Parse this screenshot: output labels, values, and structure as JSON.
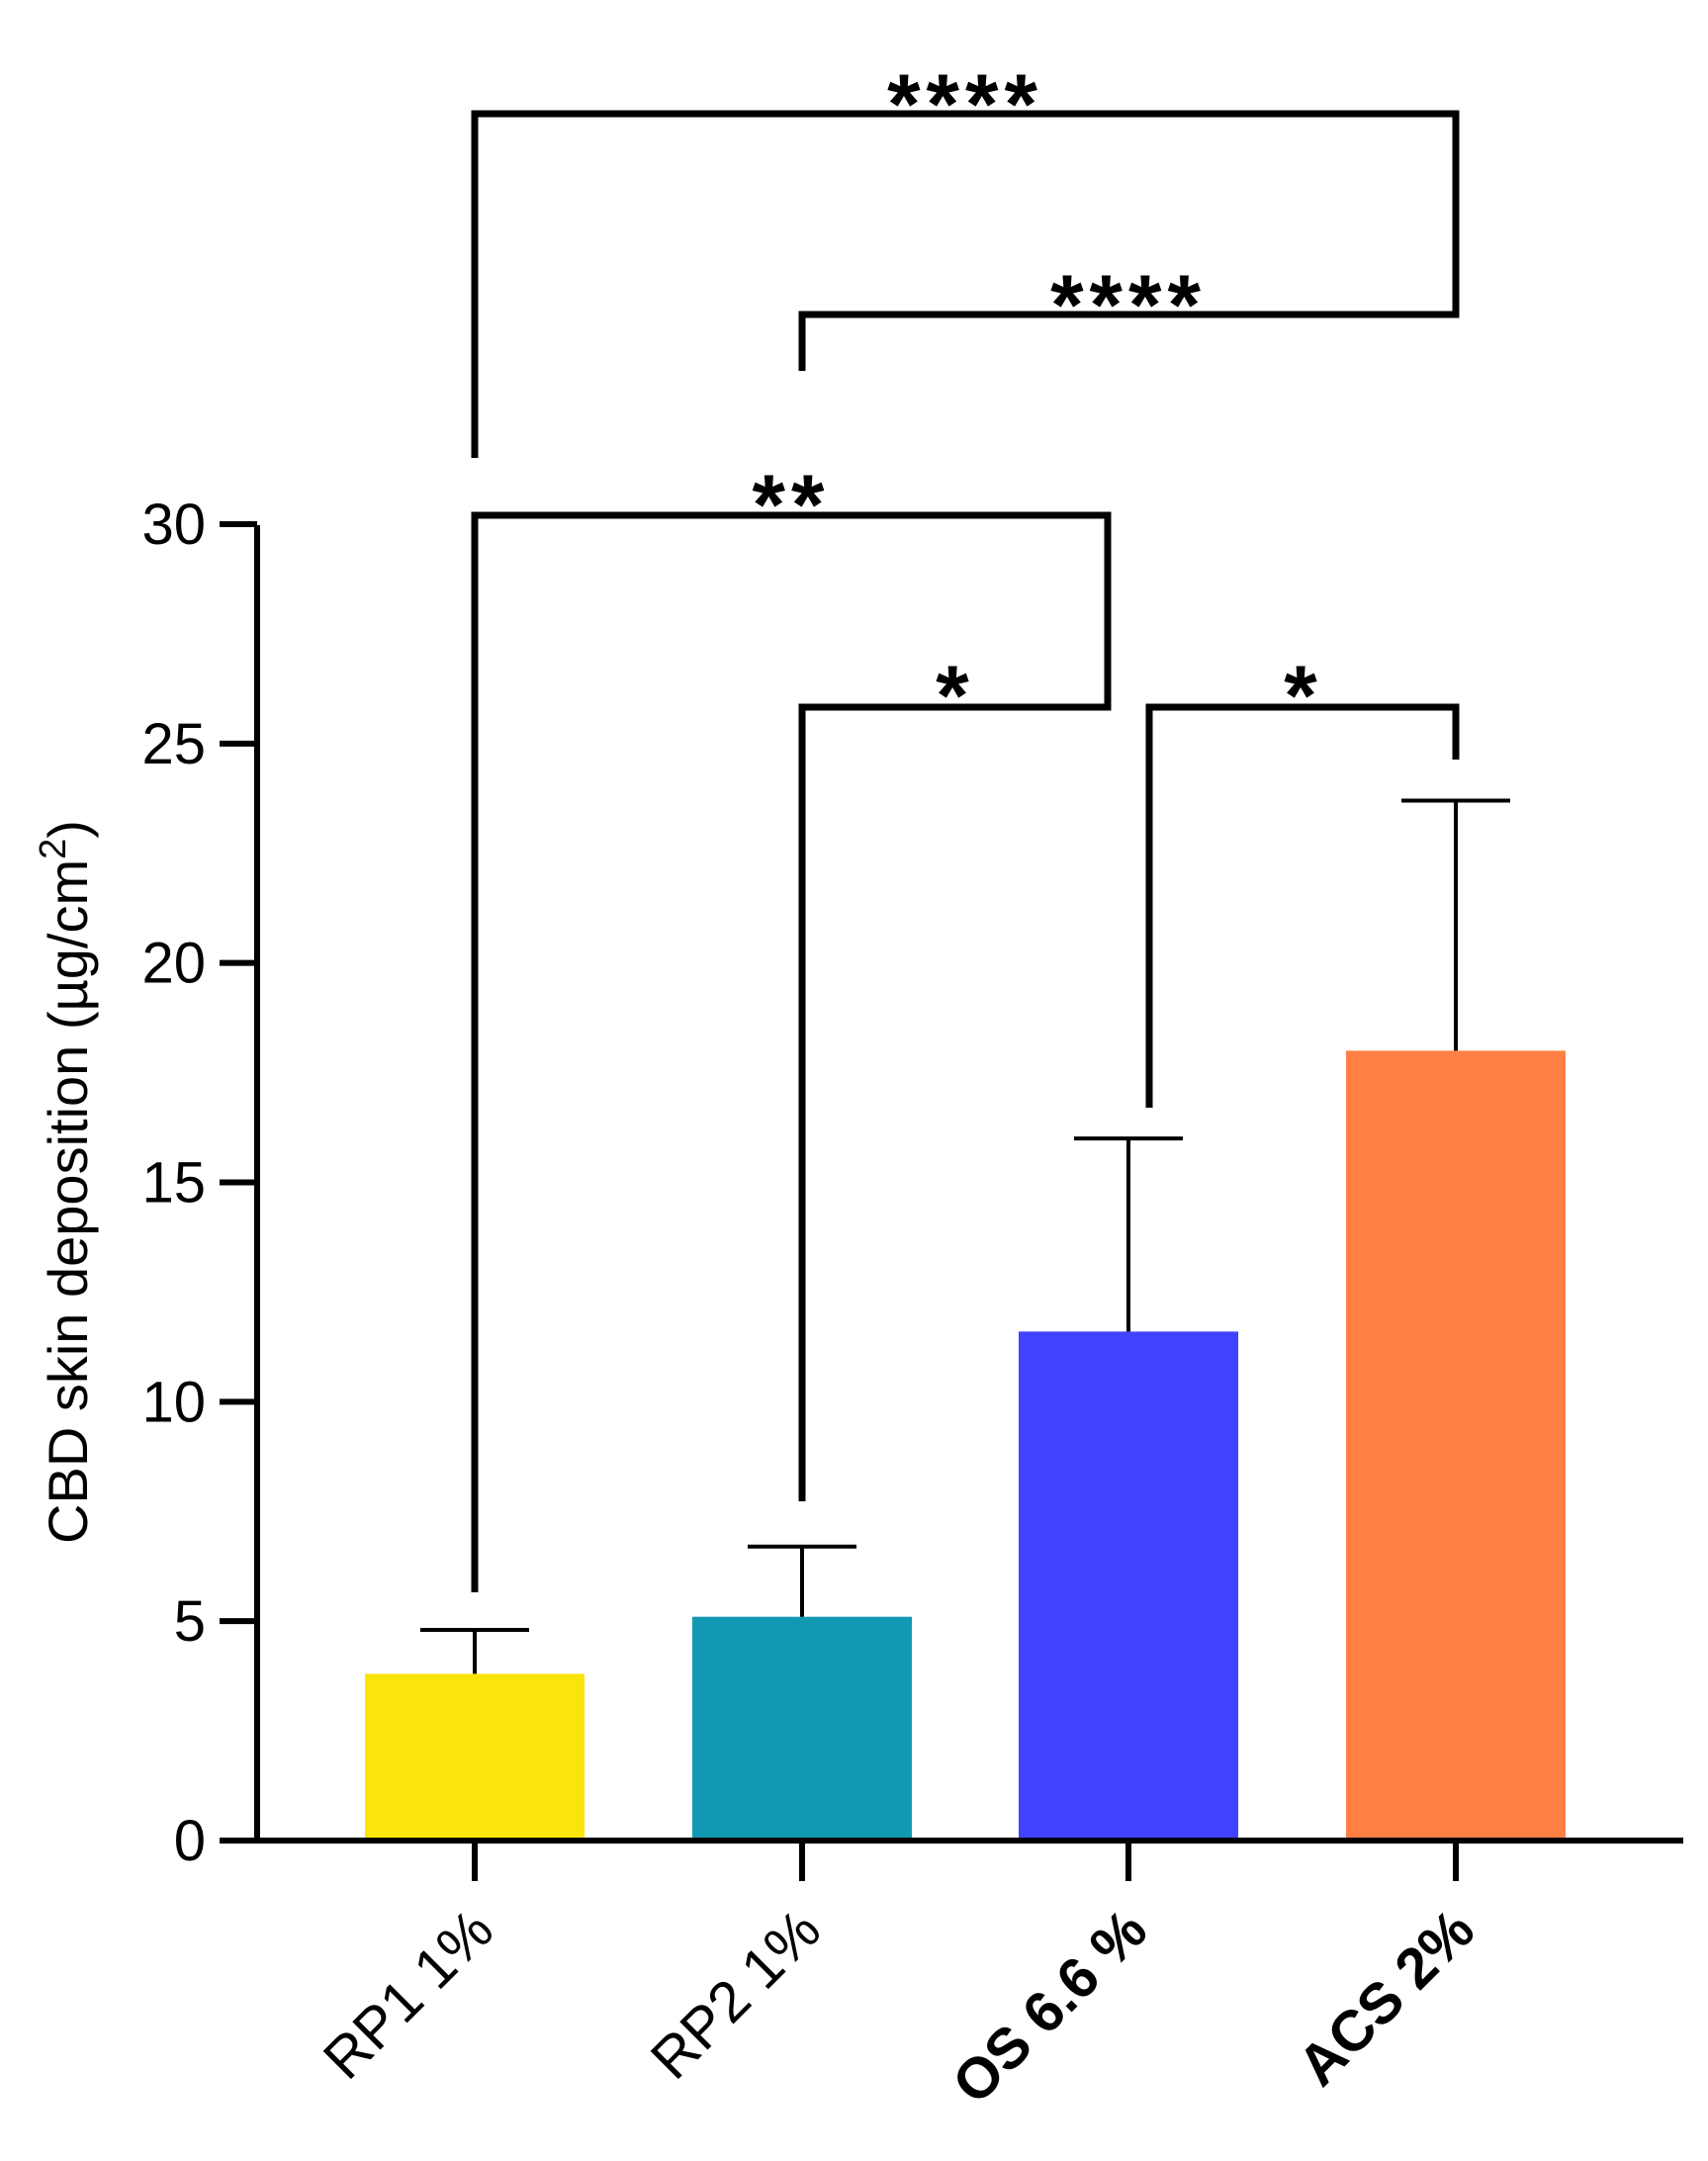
{
  "chart_data": {
    "type": "bar",
    "title": "",
    "xlabel": "",
    "ylabel": "CBD skin deposition (µg/cm",
    "ylabel_superscript": "2",
    "ylabel_suffix": ")",
    "ylim": [
      0,
      30
    ],
    "yticks": [
      0,
      5,
      10,
      15,
      20,
      25,
      30
    ],
    "tick_labels": [
      "0",
      "5",
      "10",
      "15",
      "20",
      "25",
      "30"
    ],
    "categories": [
      "RP1 1%",
      "RP2 1%",
      "OS 6.6 %",
      "ACS 2%"
    ],
    "bold_categories": [
      false,
      false,
      true,
      true
    ],
    "values": [
      3.8,
      5.1,
      11.6,
      18.0
    ],
    "errors": [
      1.0,
      1.6,
      4.4,
      5.7
    ],
    "colors": [
      "#FBE40A",
      "#1199B4",
      "#4142FF",
      "#FF8042"
    ],
    "significance": [
      {
        "from": 2,
        "to": 3,
        "label": "*",
        "level": 25.8
      },
      {
        "from": 1,
        "to": 2,
        "label": "*",
        "level": 25.8
      },
      {
        "from": 0,
        "to": 2,
        "label": "**",
        "level": 30.2
      },
      {
        "from": 1,
        "to": 3,
        "label": "****",
        "level": 34.6
      },
      {
        "from": 0,
        "to": 3,
        "label": "****",
        "level": 39.1
      }
    ]
  }
}
